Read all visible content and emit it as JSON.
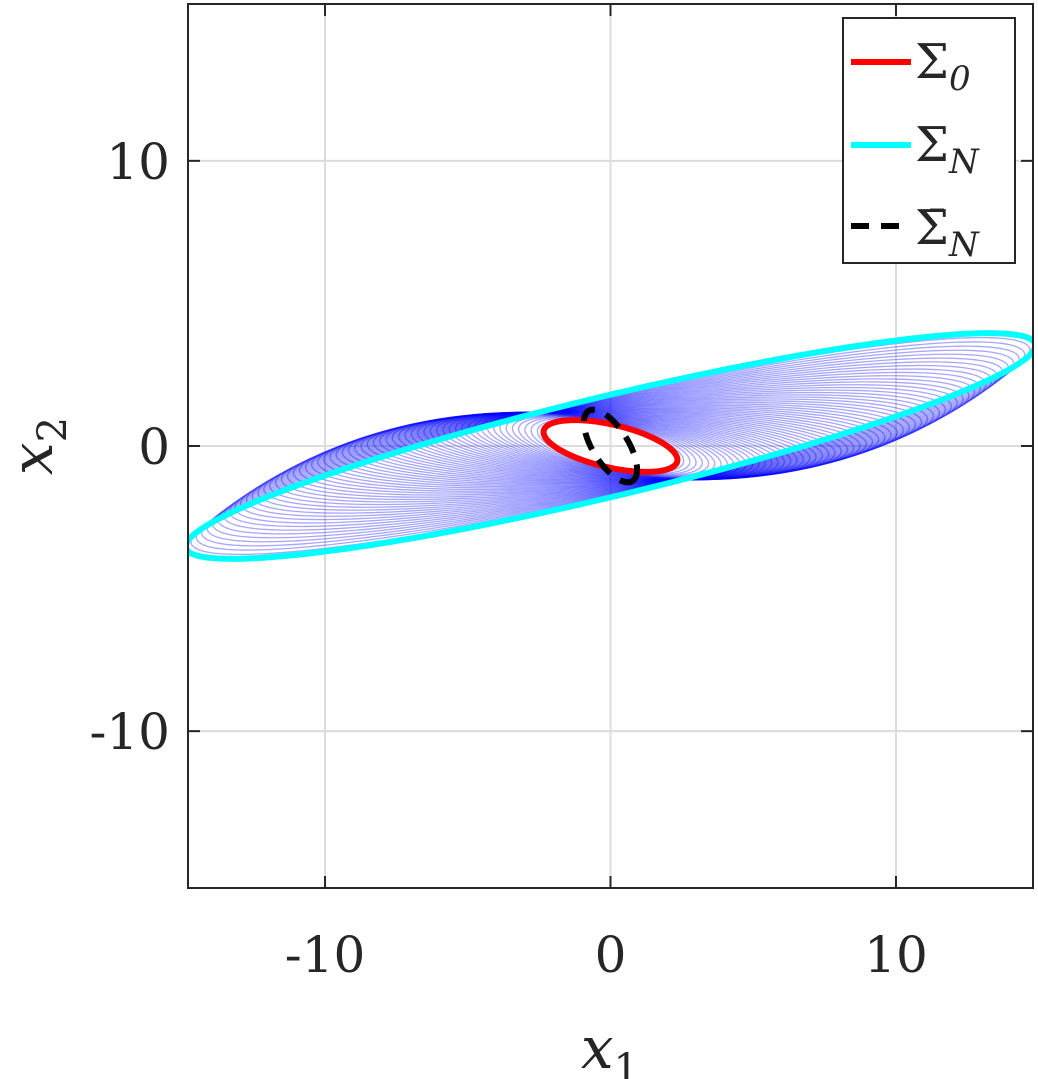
{
  "chart_data": {
    "type": "line",
    "title": "",
    "xlabel": "x",
    "xlabel_sub": "1",
    "ylabel": "x",
    "ylabel_sub": "2",
    "xlim": [
      -14.8,
      14.8
    ],
    "ylim": [
      -15.5,
      15.5
    ],
    "xticks": [
      -10,
      0,
      10
    ],
    "xtick_labels": [
      "-10",
      "0",
      "10"
    ],
    "yticks": [
      -10,
      0,
      10
    ],
    "ytick_labels": [
      "-10",
      "0",
      "10"
    ],
    "grid": true,
    "legend_position": "top-right",
    "colors": {
      "sigma0": "#ff0000",
      "sigmaN": "#00ffff",
      "sigmaNbar": "#000000",
      "trajectory": "#0000ff",
      "grid": "#dcdcdc",
      "axis": "#262626"
    },
    "series": [
      {
        "name": "Σ0",
        "legend_base": "Σ",
        "legend_sub": "0",
        "style": "solid",
        "ellipse": {
          "center": [
            0,
            0
          ],
          "semi_major": 2.4,
          "semi_minor": 0.75,
          "angle_deg": -13
        }
      },
      {
        "name": "ΣN",
        "legend_base": "Σ",
        "legend_sub": "N",
        "style": "solid",
        "ellipse": {
          "center": [
            0,
            0
          ],
          "semi_major": 15.3,
          "semi_minor": 1.75,
          "angle_deg": 13.5
        }
      },
      {
        "name": "Σ̄N",
        "legend_base": "Σ̄",
        "legend_sub": "N",
        "style": "dashed",
        "ellipse": {
          "center": [
            0,
            0
          ],
          "semi_major": 1.45,
          "semi_minor": 0.62,
          "angle_deg": -58
        }
      }
    ],
    "trajectory": {
      "count": 60,
      "description_color": "blue",
      "start_ellipse": {
        "semi_major": 2.4,
        "semi_minor": 0.75,
        "angle_deg": -13
      },
      "end_ellipse": {
        "semi_major": 15.3,
        "semi_minor": 1.75,
        "angle_deg": 13.5
      }
    }
  }
}
